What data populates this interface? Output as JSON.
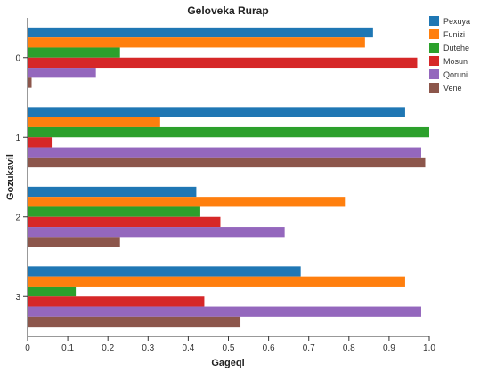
{
  "chart_data": {
    "type": "bar",
    "orientation": "horizontal",
    "title": "Geloveka Rurap",
    "xlabel": "Gageqi",
    "ylabel": "Gozukavil",
    "xlim": [
      0,
      1.0
    ],
    "xticks": [
      "0",
      "0.1",
      "0.2",
      "0.3",
      "0.4",
      "0.5",
      "0.6",
      "0.7",
      "0.8",
      "0.9",
      "1.0"
    ],
    "categories": [
      "0",
      "1",
      "2",
      "3"
    ],
    "grid": false,
    "legend_position": "top-right",
    "series": [
      {
        "name": "Pexuya",
        "color": "#1f77b4",
        "values": [
          0.86,
          0.94,
          0.42,
          0.68
        ]
      },
      {
        "name": "Funizi",
        "color": "#ff7f0e",
        "values": [
          0.84,
          0.33,
          0.79,
          0.94
        ]
      },
      {
        "name": "Dutehe",
        "color": "#2ca02c",
        "values": [
          0.23,
          1.0,
          0.43,
          0.12
        ]
      },
      {
        "name": "Mosun",
        "color": "#d62728",
        "values": [
          0.97,
          0.06,
          0.48,
          0.44
        ]
      },
      {
        "name": "Qoruni",
        "color": "#9467bd",
        "values": [
          0.17,
          0.98,
          0.64,
          0.98
        ]
      },
      {
        "name": "Vene",
        "color": "#8c564b",
        "values": [
          0.01,
          0.99,
          0.23,
          0.53
        ]
      }
    ]
  }
}
